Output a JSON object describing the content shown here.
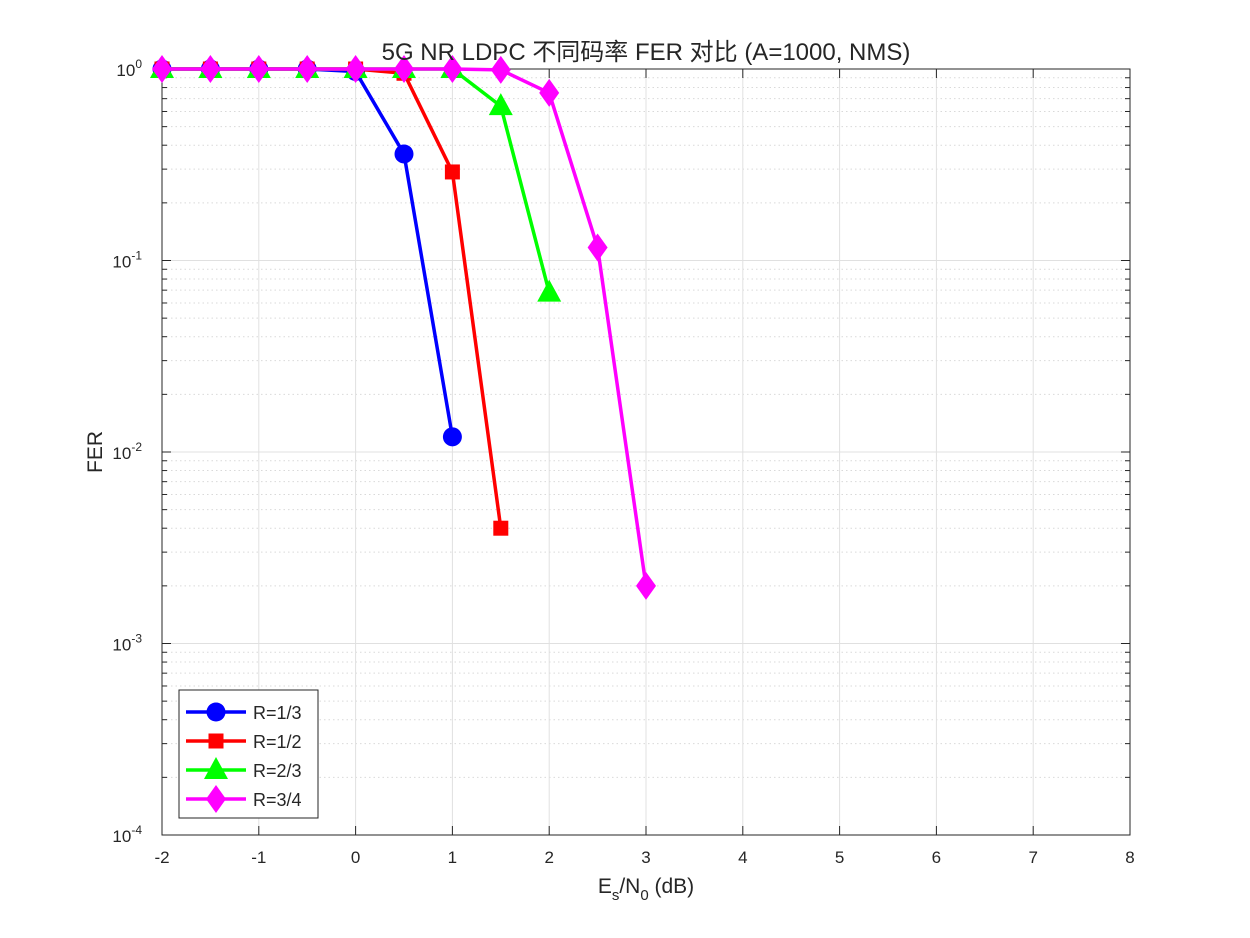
{
  "chart_data": {
    "type": "line",
    "title": "5G NR LDPC 不同码率 FER 对比 (A=1000, NMS)",
    "xlabel": {
      "main": "E",
      "sub1": "s",
      "mid": "/N",
      "sub2": "0",
      "tail": " (dB)"
    },
    "ylabel": "FER",
    "xlim": [
      -2,
      8
    ],
    "ylim": [
      0.0001,
      1
    ],
    "yscale": "log",
    "grid": true,
    "minor_grid": true,
    "legend_position": "bottom-left",
    "x_ticks": [
      "-2",
      "-1",
      "0",
      "1",
      "2",
      "3",
      "4",
      "5",
      "6",
      "7",
      "8"
    ],
    "y_ticks": [
      {
        "base": "10",
        "exp": "0"
      },
      {
        "base": "10",
        "exp": "-1"
      },
      {
        "base": "10",
        "exp": "-2"
      },
      {
        "base": "10",
        "exp": "-3"
      },
      {
        "base": "10",
        "exp": "-4"
      }
    ],
    "series": [
      {
        "name": "R=1/3",
        "color": "#0000ff",
        "marker": "circle",
        "x": [
          -2,
          -1.5,
          -1,
          -0.5,
          0,
          0.5,
          1
        ],
        "y": [
          1,
          1,
          1,
          1,
          0.97,
          0.36,
          0.012
        ]
      },
      {
        "name": "R=1/2",
        "color": "#ff0000",
        "marker": "square",
        "x": [
          -2,
          -1.5,
          -1,
          -0.5,
          0,
          0.5,
          1,
          1.5
        ],
        "y": [
          1,
          1,
          1,
          1,
          1,
          0.95,
          0.29,
          0.004
        ]
      },
      {
        "name": "R=2/3",
        "color": "#00ff00",
        "marker": "triangle",
        "x": [
          -2,
          -1.5,
          -1,
          -0.5,
          0,
          0.5,
          1,
          1.5,
          2
        ],
        "y": [
          1,
          1,
          1,
          1,
          1,
          1,
          1,
          0.64,
          0.068
        ]
      },
      {
        "name": "R=3/4",
        "color": "#ff00ff",
        "marker": "diamond",
        "x": [
          -2,
          -1.5,
          -1,
          -0.5,
          0,
          0.5,
          1,
          1.5,
          2,
          2.5,
          3
        ],
        "y": [
          1,
          1,
          1,
          1,
          1,
          1,
          1,
          0.99,
          0.75,
          0.117,
          0.002
        ]
      }
    ]
  }
}
